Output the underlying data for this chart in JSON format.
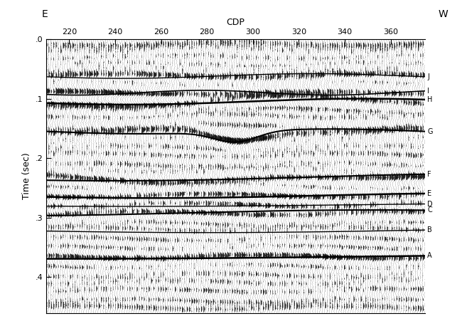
{
  "xlabel_top": "CDP",
  "ylabel": "Time (sec)",
  "label_E": "E",
  "label_W": "W",
  "cdp_min": 210,
  "cdp_max": 375,
  "time_min": 0.0,
  "time_max": 0.46,
  "cdp_ticks": [
    220,
    240,
    260,
    280,
    300,
    320,
    340,
    360
  ],
  "time_ticks": [
    0.0,
    0.1,
    0.2,
    0.3,
    0.4
  ],
  "time_tick_labels": [
    ".0",
    ".1",
    ".2",
    ".3",
    ".4"
  ],
  "background_color": "#ffffff",
  "figsize": [
    6.5,
    4.58
  ],
  "dpi": 100,
  "horizon_defs": {
    "J": {
      "base": 0.062,
      "lw": 1.0
    },
    "I": {
      "base": 0.09,
      "lw": 1.2
    },
    "H": {
      "base": 0.105,
      "lw": 1.8
    },
    "G": {
      "base": 0.155,
      "lw": 1.5
    },
    "F": {
      "base": 0.232,
      "lw": 1.5
    },
    "E": {
      "base": 0.263,
      "lw": 1.8
    },
    "D": {
      "base": 0.278,
      "lw": 1.0
    },
    "C": {
      "base": 0.292,
      "lw": 1.5
    },
    "B": {
      "base": 0.32,
      "lw": 1.0
    },
    "A": {
      "base": 0.365,
      "lw": 1.8
    }
  }
}
